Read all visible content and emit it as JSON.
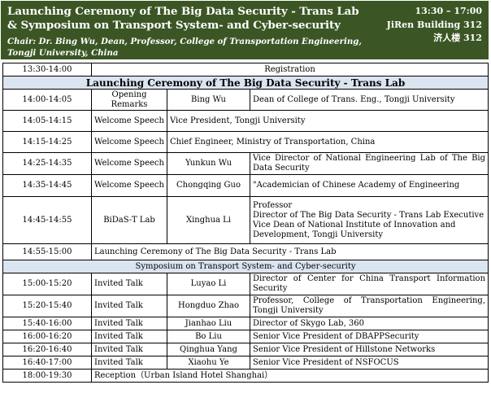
{
  "header": {
    "title": "Launching Ceremony of The Big Data Security - Trans Lab & Symposium on Transport System- and Cyber-security",
    "chair": "Chair: Dr. Bing Wu, Dean, Professor, College of Transportation Engineering, Tongji University, China",
    "time": "13:30 – 17:00",
    "building": "JiRen Building 312",
    "building_cn": "济人楼 312"
  },
  "registration": {
    "time": "13:30-14:00",
    "label": "Registration"
  },
  "section1": {
    "title": "Launching Ceremony of The Big Data Security - Trans Lab"
  },
  "rows1": [
    {
      "time": "14:00-14:05",
      "type": "Opening Remarks",
      "name": "Bing Wu",
      "desc": "Dean of College of Trans. Eng., Tongji University"
    },
    {
      "time": "14:05-14:15",
      "type": "Welcome Speech",
      "name": "",
      "desc": "Vice President, Tongji University"
    },
    {
      "time": "14:15-14:25",
      "type": "Welcome Speech",
      "name": "",
      "desc": "Chief Engineer, Ministry of Transportation, China"
    },
    {
      "time": "14:25-14:35",
      "type": "Welcome Speech",
      "name": "Yunkun Wu",
      "desc": "Vice Director of National Engineering Lab of The Big Data Security"
    },
    {
      "time": "14:35-14:45",
      "type": "Welcome Speech",
      "name": "Chongqing Guo",
      "desc": "\"Academician of Chinese Academy of Engineering"
    },
    {
      "time": "14:45-14:55",
      "type": "BiDaS-T Lab",
      "name": "Xinghua Li",
      "desc_lines": [
        "Professor",
        "Director of The Big Data Security - Trans Lab Executive",
        "Vice Dean of National Institute of Innovation and",
        "Development,   Tongji University"
      ]
    }
  ],
  "launch_row": {
    "time": "14:55-15:00",
    "label": "Launching Ceremony of The Big Data Security - Trans Lab"
  },
  "section2": {
    "title": "Symposium on Transport System- and Cyber-security"
  },
  "rows2": [
    {
      "time": "15:00-15:20",
      "type": "Invited Talk",
      "name": "Luyao Li",
      "desc": "Director of Center for China Transport Information Security"
    },
    {
      "time": "15:20-15:40",
      "type": "Invited Talk",
      "name": "Hongduo Zhao",
      "desc": "Professor, College of Transportation Engineering, Tongji University"
    },
    {
      "time": "15:40-16:00",
      "type": "Invited Talk",
      "name": "Jianhao Liu",
      "desc": "Director of Skygo Lab, 360"
    },
    {
      "time": "16:00-16:20",
      "type": "Invited Talk",
      "name": "Bo Liu",
      "desc": "Senior Vice President of DBAPPSecurity"
    },
    {
      "time": "16:20-16:40",
      "type": "Invited Talk",
      "name": "Qinghua Yang",
      "desc": "Senior Vice President of Hillstone Networks"
    },
    {
      "time": "16:40-17:00",
      "type": "Invited Talk",
      "name": "Xiaohu Ye",
      "desc": "Senior Vice President of NSFOCUS"
    }
  ],
  "reception": {
    "time": "18:00-19:30",
    "label": "Reception（Urban Island Hotel Shanghai）"
  }
}
